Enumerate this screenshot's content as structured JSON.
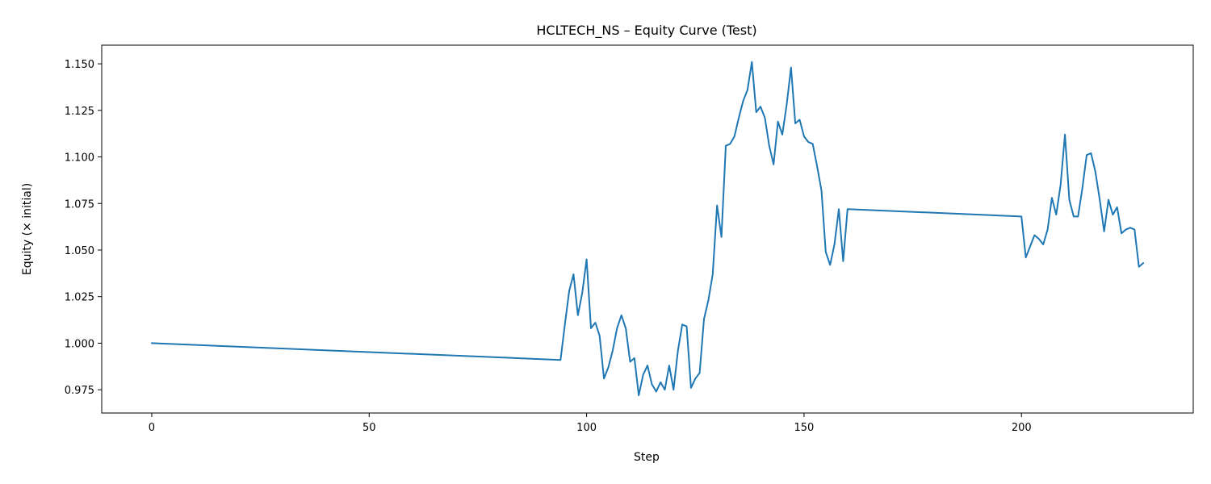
{
  "chart_data": {
    "type": "line",
    "title": "HCLTECH_NS – Equity Curve (Test)",
    "xlabel": "Step",
    "ylabel": "Equity (× initial)",
    "xlim": [
      -11.5,
      239.5
    ],
    "ylim": [
      0.9625,
      1.16
    ],
    "xticks": [
      0,
      50,
      100,
      150,
      200
    ],
    "xtick_labels": [
      "0",
      "50",
      "100",
      "150",
      "200"
    ],
    "yticks": [
      0.975,
      1.0,
      1.025,
      1.05,
      1.075,
      1.1,
      1.125,
      1.15
    ],
    "ytick_labels": [
      "0.975",
      "1.000",
      "1.025",
      "1.050",
      "1.075",
      "1.100",
      "1.125",
      "1.150"
    ],
    "grid": false,
    "color": "#1f77b4",
    "series": [
      {
        "x": [
          0,
          94,
          95,
          96,
          97,
          98,
          99,
          100,
          101,
          102,
          103,
          104,
          105,
          106,
          107,
          108,
          109,
          110,
          111,
          112,
          113,
          114,
          115,
          116,
          117,
          118,
          119,
          120,
          121,
          122,
          123,
          124,
          125,
          126,
          127,
          128,
          129,
          130,
          131,
          132,
          133,
          134,
          135,
          136,
          137,
          138,
          139,
          140,
          141,
          142,
          143,
          144,
          145,
          146,
          147,
          148,
          149,
          150,
          151,
          152,
          153,
          154,
          155,
          156,
          157,
          158,
          159,
          160,
          200,
          201,
          202,
          203,
          204,
          205,
          206,
          207,
          208,
          209,
          210,
          211,
          212,
          213,
          214,
          215,
          216,
          217,
          218,
          219,
          220,
          221,
          222,
          223,
          224,
          225,
          226,
          227,
          228
        ],
        "y": [
          1.0,
          0.991,
          1.01,
          1.028,
          1.037,
          1.015,
          1.027,
          1.045,
          1.008,
          1.011,
          1.004,
          0.981,
          0.987,
          0.996,
          1.008,
          1.015,
          1.008,
          0.99,
          0.992,
          0.972,
          0.983,
          0.988,
          0.978,
          0.974,
          0.979,
          0.975,
          0.988,
          0.975,
          0.996,
          1.01,
          1.009,
          0.976,
          0.981,
          0.984,
          1.013,
          1.023,
          1.037,
          1.074,
          1.057,
          1.106,
          1.107,
          1.111,
          1.121,
          1.13,
          1.136,
          1.151,
          1.124,
          1.127,
          1.121,
          1.106,
          1.096,
          1.119,
          1.112,
          1.128,
          1.148,
          1.118,
          1.12,
          1.111,
          1.108,
          1.107,
          1.095,
          1.082,
          1.049,
          1.042,
          1.053,
          1.072,
          1.044,
          1.072,
          1.068,
          1.046,
          1.052,
          1.058,
          1.056,
          1.053,
          1.061,
          1.078,
          1.069,
          1.085,
          1.112,
          1.077,
          1.068,
          1.068,
          1.083,
          1.101,
          1.102,
          1.092,
          1.077,
          1.06,
          1.077,
          1.069,
          1.073,
          1.059,
          1.061,
          1.062,
          1.061,
          1.041,
          1.043
        ]
      }
    ]
  }
}
